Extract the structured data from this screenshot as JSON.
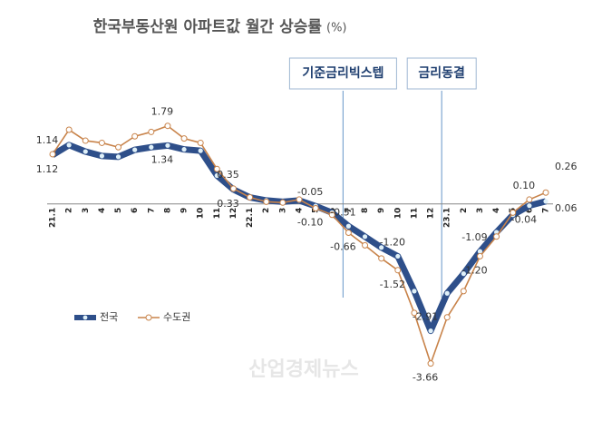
{
  "chart_data": {
    "type": "line",
    "title": "한국부동산원 아파트값 월간 상승률",
    "unit": "(%)",
    "categories": [
      "21.1",
      "2",
      "3",
      "4",
      "5",
      "6",
      "7",
      "8",
      "9",
      "10",
      "11",
      "12",
      "22.1",
      "2",
      "3",
      "4",
      "5",
      "6",
      "7",
      "8",
      "9",
      "10",
      "11",
      "12",
      "23.1",
      "2",
      "3",
      "4",
      "5",
      "6",
      "7"
    ],
    "series": [
      {
        "name": "전국",
        "color": "#2e4f8a",
        "values": [
          1.12,
          1.35,
          1.2,
          1.1,
          1.08,
          1.24,
          1.3,
          1.34,
          1.25,
          1.22,
          0.65,
          0.33,
          0.15,
          0.08,
          0.05,
          0.08,
          -0.05,
          -0.2,
          -0.51,
          -0.75,
          -1.0,
          -1.2,
          -2.0,
          -2.91,
          -2.05,
          -1.6,
          -1.09,
          -0.65,
          -0.25,
          -0.04,
          0.06
        ],
        "value_labels": [
          "1.12",
          null,
          null,
          null,
          null,
          null,
          null,
          "1.34",
          null,
          null,
          null,
          "0.33",
          null,
          null,
          null,
          null,
          "-0.05",
          null,
          "-0.51",
          null,
          null,
          "-1.20",
          null,
          "-2.91",
          null,
          null,
          "-1.09",
          null,
          null,
          "-0.04",
          "0.06"
        ]
      },
      {
        "name": "수도권",
        "color": "#c8834a",
        "values": [
          1.14,
          1.7,
          1.45,
          1.4,
          1.3,
          1.55,
          1.65,
          1.79,
          1.5,
          1.4,
          0.8,
          0.35,
          0.15,
          0.05,
          0.03,
          0.1,
          -0.1,
          -0.25,
          -0.66,
          -0.95,
          -1.25,
          -1.52,
          -2.5,
          -3.66,
          -2.6,
          -2.0,
          -1.2,
          -0.75,
          -0.2,
          0.1,
          0.26
        ],
        "value_labels": [
          "1.14",
          null,
          null,
          null,
          null,
          null,
          null,
          "1.79",
          null,
          null,
          null,
          "0.35",
          null,
          null,
          null,
          null,
          "-0.10",
          null,
          "-0.66",
          null,
          null,
          "-1.52",
          null,
          "-3.66",
          null,
          null,
          "-1.20",
          null,
          null,
          "0.10",
          "0.26"
        ]
      }
    ],
    "ylim": [
      -4,
      2.2
    ],
    "annotations": [
      {
        "text": "기준금리빅스텝",
        "index": 18
      },
      {
        "text": "금리동결",
        "index": 24
      }
    ],
    "watermark": "산업경제뉴스",
    "legend": "bottom-left"
  }
}
